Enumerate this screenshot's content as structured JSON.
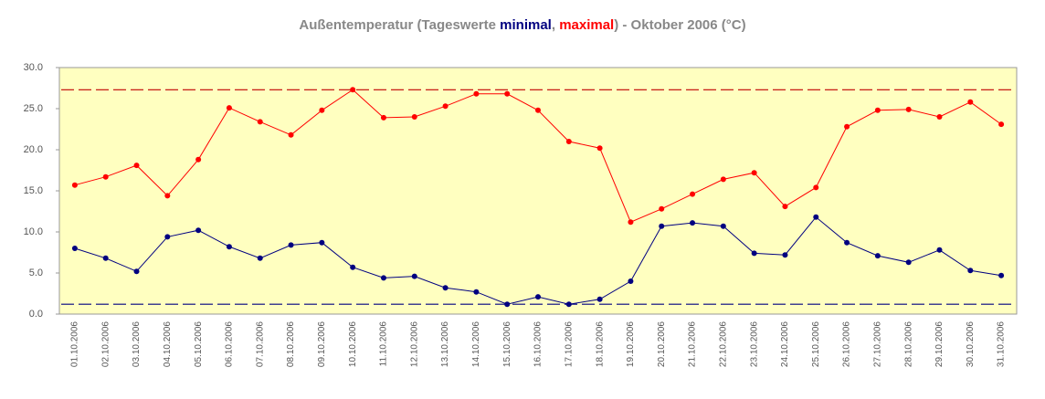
{
  "chart_data": {
    "type": "line",
    "title_prefix": "Außentemperatur (Tageswerte ",
    "title_separator": ", ",
    "title_suffix": ") - Oktober 2006 (°C)",
    "categories": [
      "01.10.2006",
      "02.10.2006",
      "03.10.2006",
      "04.10.2006",
      "05.10.2006",
      "06.10.2006",
      "07.10.2006",
      "08.10.2006",
      "09.10.2006",
      "10.10.2006",
      "11.10.2006",
      "12.10.2006",
      "13.10.2006",
      "14.10.2006",
      "15.10.2006",
      "16.10.2006",
      "17.10.2006",
      "18.10.2006",
      "19.10.2006",
      "20.10.2006",
      "21.10.2006",
      "22.10.2006",
      "23.10.2006",
      "24.10.2006",
      "25.10.2006",
      "26.10.2006",
      "27.10.2006",
      "28.10.2006",
      "29.10.2006",
      "30.10.2006",
      "31.10.2006"
    ],
    "series": [
      {
        "name": "minimal",
        "color": "#000080",
        "values": [
          8.0,
          6.8,
          5.2,
          9.4,
          10.2,
          8.2,
          6.8,
          8.4,
          8.7,
          5.7,
          4.4,
          4.6,
          3.2,
          2.7,
          1.2,
          2.1,
          1.2,
          1.8,
          4.0,
          10.7,
          11.1,
          10.7,
          7.4,
          7.2,
          11.8,
          8.7,
          7.1,
          6.3,
          7.8,
          5.3,
          4.7
        ]
      },
      {
        "name": "maximal",
        "color": "#ff0000",
        "values": [
          15.7,
          16.7,
          18.1,
          14.4,
          18.8,
          25.1,
          23.4,
          21.8,
          24.8,
          27.3,
          23.9,
          24.0,
          25.3,
          26.8,
          26.8,
          24.8,
          21.0,
          20.2,
          11.2,
          12.8,
          14.6,
          16.4,
          17.2,
          13.1,
          15.4,
          22.8,
          24.8,
          24.9,
          24.0,
          25.8,
          23.1
        ]
      }
    ],
    "reference_lines": [
      {
        "value": 27.3,
        "color": "#c00000"
      },
      {
        "value": 1.2,
        "color": "#000080"
      }
    ],
    "ylim": [
      0,
      30
    ],
    "yticks": [
      {
        "value": 0,
        "label": "0.0"
      },
      {
        "value": 5,
        "label": "5.0"
      },
      {
        "value": 10,
        "label": "10.0"
      },
      {
        "value": 15,
        "label": "15.0"
      },
      {
        "value": 20,
        "label": "20.0"
      },
      {
        "value": 25,
        "label": "25.0"
      },
      {
        "value": 30,
        "label": "30.0"
      }
    ],
    "plot_background": "#ffffc0"
  }
}
